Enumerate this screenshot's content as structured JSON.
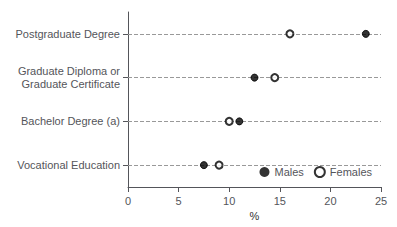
{
  "chart_data": {
    "type": "scatter",
    "orientation": "horizontal",
    "categories": [
      "Vocational Education",
      "Bachelor Degree (a)",
      "Graduate Diploma or\nGraduate Certificate",
      "Postgraduate Degree"
    ],
    "series": [
      {
        "name": "Males",
        "color": "#000000",
        "marker": "circle",
        "values": [
          7.5,
          11.0,
          12.5,
          23.5
        ]
      },
      {
        "name": "Females",
        "color": "#000000",
        "marker": "emptyCircle",
        "values": [
          9.0,
          10.0,
          14.5,
          16.0
        ]
      }
    ],
    "xlabel": "%",
    "xlim": [
      0,
      25
    ],
    "xticks": [
      0,
      5,
      10,
      15,
      20,
      25
    ],
    "grid": true,
    "legend": "lower right"
  }
}
